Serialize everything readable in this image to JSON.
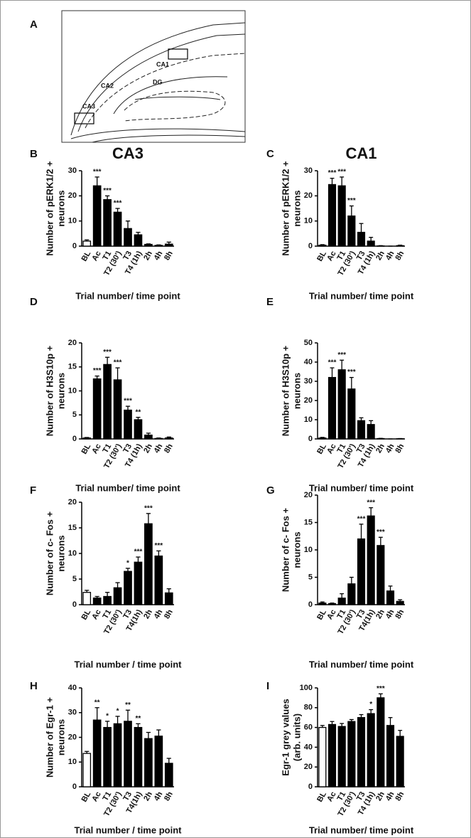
{
  "diagram": {
    "panel": "A",
    "labels": [
      "CA1",
      "CA2",
      "DG",
      "CA3"
    ]
  },
  "chart_data": [
    {
      "type": "bar",
      "panel": "B",
      "title": "CA3",
      "ylabel": [
        "Number of pERK1/2 +",
        "neurons"
      ],
      "xlabel": "Trial number/ time point",
      "categories": [
        "BL",
        "Ac",
        "T1",
        "T2 (30')",
        "T3",
        "T4 (1h)",
        "2h",
        "4h",
        "8h"
      ],
      "values": [
        2,
        24,
        18.5,
        13.5,
        7,
        4.5,
        0.7,
        0.3,
        0.8
      ],
      "errors": [
        0.5,
        3.5,
        1.5,
        1.5,
        3,
        1,
        0.2,
        0.2,
        0.8
      ],
      "annotations": [
        null,
        "***",
        "***",
        "***",
        null,
        null,
        null,
        null,
        null
      ],
      "colors": [
        "#ffffff",
        "#000000",
        "#000000",
        "#000000",
        "#000000",
        "#000000",
        "#000000",
        "#000000",
        "#000000"
      ],
      "ylim": [
        0,
        30
      ],
      "yticks": [
        0,
        10,
        20,
        30
      ]
    },
    {
      "type": "bar",
      "panel": "C",
      "title": "CA1",
      "ylabel": [
        "Number of pERK1/2 +",
        "neurons"
      ],
      "xlabel": "Trial number/ time point",
      "categories": [
        "BL",
        "Ac",
        "T1",
        "T2 (30')",
        "T3",
        "T4 (1h)",
        "2h",
        "4h",
        "8h"
      ],
      "values": [
        0.4,
        24.5,
        24,
        12,
        5.5,
        2,
        0.1,
        0,
        0.2
      ],
      "errors": [
        0.2,
        2.5,
        3.5,
        4,
        3.5,
        1.5,
        0.1,
        0,
        0.2
      ],
      "annotations": [
        null,
        "***",
        "***",
        "***",
        null,
        null,
        null,
        null,
        null
      ],
      "colors": [
        "#000000",
        "#000000",
        "#000000",
        "#000000",
        "#000000",
        "#000000",
        "#000000",
        "#000000",
        "#000000"
      ],
      "ylim": [
        0,
        30
      ],
      "yticks": [
        0,
        10,
        20,
        30
      ]
    },
    {
      "type": "bar",
      "panel": "D",
      "ylabel": [
        "Number of H3S10p +",
        "neurons"
      ],
      "xlabel": "Trial number/ time point",
      "categories": [
        "BL",
        "Ac",
        "T1",
        "T2 (30')",
        "T3",
        "T4 (1h)",
        "2h",
        "4h",
        "8h"
      ],
      "values": [
        0.2,
        12.5,
        15.5,
        12.3,
        6,
        4,
        0.8,
        0.1,
        0.2
      ],
      "errors": [
        0.1,
        0.6,
        1.5,
        2.5,
        0.8,
        0.5,
        0.4,
        0.1,
        0.2
      ],
      "annotations": [
        null,
        "***",
        "***",
        "***",
        "***",
        "**",
        null,
        null,
        null
      ],
      "colors": [
        "#000000",
        "#000000",
        "#000000",
        "#000000",
        "#000000",
        "#000000",
        "#000000",
        "#000000",
        "#000000"
      ],
      "ylim": [
        0,
        20
      ],
      "yticks": [
        0,
        5,
        10,
        15,
        20
      ]
    },
    {
      "type": "bar",
      "panel": "E",
      "ylabel": [
        "Number of H3S10p +",
        "neurons"
      ],
      "xlabel": "Trial number/ time point",
      "categories": [
        "BL",
        "Ac",
        "T1",
        "T2 (30')",
        "T3",
        "T4 (1h)",
        "2h",
        "4h",
        "8h"
      ],
      "values": [
        0.5,
        32,
        36,
        26,
        9.5,
        7.5,
        0.2,
        0,
        0.1
      ],
      "errors": [
        0.3,
        5,
        5,
        6,
        1.5,
        2,
        0.1,
        0,
        0.1
      ],
      "annotations": [
        null,
        "***",
        "***",
        "***",
        null,
        null,
        null,
        null,
        null
      ],
      "colors": [
        "#000000",
        "#000000",
        "#000000",
        "#000000",
        "#000000",
        "#000000",
        "#000000",
        "#000000",
        "#000000"
      ],
      "ylim": [
        0,
        50
      ],
      "yticks": [
        0,
        10,
        20,
        30,
        40,
        50
      ]
    },
    {
      "type": "bar",
      "panel": "F",
      "ylabel": [
        "Number of c- Fos +",
        "neurons"
      ],
      "xlabel": "Trial number / time point",
      "categories": [
        "BL",
        "Ac",
        "T1",
        "T2 (30')",
        "T3",
        "T4(1h)",
        "2h",
        "4h",
        "8h"
      ],
      "values": [
        2.4,
        1.3,
        1.6,
        3.3,
        6.5,
        8.3,
        15.8,
        9.5,
        2.3
      ],
      "errors": [
        0.4,
        0.3,
        0.8,
        1,
        0.6,
        1,
        2,
        1,
        0.8
      ],
      "annotations": [
        null,
        null,
        null,
        null,
        "*",
        "***",
        "***",
        "***",
        null
      ],
      "colors": [
        "#ffffff",
        "#000000",
        "#000000",
        "#000000",
        "#000000",
        "#000000",
        "#000000",
        "#000000",
        "#000000"
      ],
      "ylim": [
        0,
        20
      ],
      "yticks": [
        0,
        5,
        10,
        15,
        20
      ]
    },
    {
      "type": "bar",
      "panel": "G",
      "ylabel": [
        "Number of c- Fos +",
        "neurons"
      ],
      "xlabel": "Trial number/ time point",
      "categories": [
        "BL",
        "Ac",
        "T1",
        "T2 (30')",
        "T3",
        "T4(1h)",
        "2h",
        "4h",
        "8h"
      ],
      "values": [
        0.3,
        0.2,
        1.2,
        3.8,
        12,
        16.2,
        10.8,
        2.5,
        0.6
      ],
      "errors": [
        0.2,
        0.1,
        0.8,
        1.2,
        2.7,
        1.5,
        1.5,
        0.9,
        0.3
      ],
      "annotations": [
        null,
        null,
        null,
        null,
        "***",
        "***",
        "***",
        null,
        null
      ],
      "colors": [
        "#000000",
        "#000000",
        "#000000",
        "#000000",
        "#000000",
        "#000000",
        "#000000",
        "#000000",
        "#000000"
      ],
      "ylim": [
        0,
        20
      ],
      "yticks": [
        0,
        5,
        10,
        15,
        20
      ]
    },
    {
      "type": "bar",
      "panel": "H",
      "ylabel": [
        "Number of Egr-1 +",
        "neurons"
      ],
      "xlabel": "Trial number / time point",
      "categories": [
        "BL",
        "Ac",
        "T1",
        "T2 (30')",
        "T3",
        "T4(1h)",
        "2h",
        "4h",
        "8h"
      ],
      "values": [
        13.5,
        27,
        24,
        25.5,
        26.5,
        24,
        19.5,
        20.5,
        9.5
      ],
      "errors": [
        0.8,
        5,
        2.5,
        3,
        4.5,
        1.5,
        2.5,
        2.5,
        2
      ],
      "annotations": [
        null,
        "**",
        "*",
        "*",
        "**",
        "**",
        null,
        null,
        null
      ],
      "colors": [
        "#ffffff",
        "#000000",
        "#000000",
        "#000000",
        "#000000",
        "#000000",
        "#000000",
        "#000000",
        "#000000"
      ],
      "ylim": [
        0,
        40
      ],
      "yticks": [
        0,
        10,
        20,
        30,
        40
      ]
    },
    {
      "type": "bar",
      "panel": "I",
      "ylabel": [
        "Egr-1 grey values",
        "(arb. units)"
      ],
      "xlabel": "Trial number/ time point",
      "categories": [
        "BL",
        "Ac",
        "T1",
        "T2 (30')",
        "T3",
        "T4 (1h)",
        "2h",
        "4h",
        "8h"
      ],
      "values": [
        60,
        63,
        61,
        66,
        70,
        74,
        90,
        62,
        51
      ],
      "errors": [
        2,
        3,
        3,
        2,
        3,
        4,
        4,
        8,
        6
      ],
      "annotations": [
        null,
        null,
        null,
        null,
        null,
        "*",
        "***",
        null,
        null
      ],
      "colors": [
        "#ffffff",
        "#000000",
        "#000000",
        "#000000",
        "#000000",
        "#000000",
        "#000000",
        "#000000",
        "#000000"
      ],
      "ylim": [
        0,
        100
      ],
      "yticks": [
        0,
        20,
        40,
        60,
        80,
        100
      ]
    }
  ]
}
